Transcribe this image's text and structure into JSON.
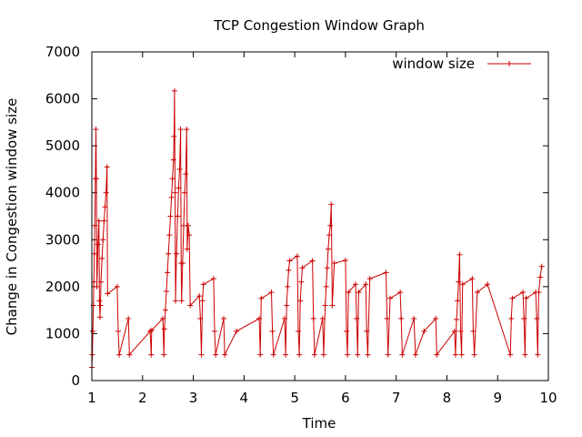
{
  "chart_data": {
    "type": "line",
    "title": "TCP Congestion Window Graph",
    "xlabel": "Time",
    "ylabel": "Change in Congestion window size",
    "xlim": [
      1,
      10
    ],
    "ylim": [
      0,
      7000
    ],
    "xticks": [
      1,
      2,
      3,
      4,
      5,
      6,
      7,
      8,
      9,
      10
    ],
    "yticks": [
      0,
      1000,
      2000,
      3000,
      4000,
      5000,
      6000,
      7000
    ],
    "grid": false,
    "legend_position": "top-right",
    "series": [
      {
        "name": "window size",
        "color": "#cc0000",
        "marker": "plus",
        "points": [
          [
            1.0,
            280
          ],
          [
            1.01,
            550
          ],
          [
            1.02,
            1050
          ],
          [
            1.03,
            1600
          ],
          [
            1.04,
            2100
          ],
          [
            1.05,
            2700
          ],
          [
            1.06,
            3300
          ],
          [
            1.07,
            4300
          ],
          [
            1.08,
            5350
          ],
          [
            1.09,
            4300
          ],
          [
            1.1,
            2000
          ],
          [
            1.12,
            2900
          ],
          [
            1.14,
            3400
          ],
          [
            1.15,
            1700
          ],
          [
            1.16,
            1350
          ],
          [
            1.17,
            1600
          ],
          [
            1.18,
            2100
          ],
          [
            1.2,
            2600
          ],
          [
            1.22,
            3000
          ],
          [
            1.24,
            3400
          ],
          [
            1.26,
            3700
          ],
          [
            1.28,
            4000
          ],
          [
            1.3,
            4550
          ],
          [
            1.31,
            1850
          ],
          [
            1.5,
            2000
          ],
          [
            1.52,
            1050
          ],
          [
            1.54,
            550
          ],
          [
            1.72,
            1320
          ],
          [
            1.74,
            550
          ],
          [
            2.15,
            1050
          ],
          [
            2.17,
            550
          ],
          [
            2.18,
            1070
          ],
          [
            2.4,
            1320
          ],
          [
            2.42,
            550
          ],
          [
            2.43,
            1100
          ],
          [
            2.45,
            1500
          ],
          [
            2.47,
            1900
          ],
          [
            2.49,
            2300
          ],
          [
            2.51,
            2700
          ],
          [
            2.53,
            3100
          ],
          [
            2.55,
            3500
          ],
          [
            2.57,
            3900
          ],
          [
            2.59,
            4300
          ],
          [
            2.61,
            4700
          ],
          [
            2.62,
            5200
          ],
          [
            2.63,
            6170
          ],
          [
            2.64,
            4000
          ],
          [
            2.65,
            1700
          ],
          [
            2.67,
            2700
          ],
          [
            2.69,
            3500
          ],
          [
            2.71,
            4100
          ],
          [
            2.73,
            4500
          ],
          [
            2.75,
            5350
          ],
          [
            2.76,
            2500
          ],
          [
            2.77,
            1700
          ],
          [
            2.79,
            2500
          ],
          [
            2.81,
            3300
          ],
          [
            2.83,
            4000
          ],
          [
            2.85,
            4400
          ],
          [
            2.87,
            5350
          ],
          [
            2.88,
            2800
          ],
          [
            2.9,
            3300
          ],
          [
            2.92,
            3100
          ],
          [
            2.94,
            1600
          ],
          [
            3.12,
            1800
          ],
          [
            3.14,
            1320
          ],
          [
            3.16,
            550
          ],
          [
            3.18,
            1700
          ],
          [
            3.2,
            2050
          ],
          [
            3.4,
            2170
          ],
          [
            3.42,
            1050
          ],
          [
            3.44,
            550
          ],
          [
            3.6,
            1320
          ],
          [
            3.62,
            550
          ],
          [
            3.85,
            1050
          ],
          [
            4.3,
            1320
          ],
          [
            4.32,
            550
          ],
          [
            4.34,
            1750
          ],
          [
            4.54,
            1880
          ],
          [
            4.56,
            1050
          ],
          [
            4.58,
            550
          ],
          [
            4.8,
            1320
          ],
          [
            4.82,
            550
          ],
          [
            4.84,
            1600
          ],
          [
            4.86,
            2000
          ],
          [
            4.88,
            2350
          ],
          [
            4.9,
            2550
          ],
          [
            5.05,
            2650
          ],
          [
            5.07,
            1050
          ],
          [
            5.09,
            550
          ],
          [
            5.11,
            1700
          ],
          [
            5.13,
            2100
          ],
          [
            5.15,
            2400
          ],
          [
            5.35,
            2550
          ],
          [
            5.37,
            1320
          ],
          [
            5.39,
            550
          ],
          [
            5.55,
            1320
          ],
          [
            5.57,
            550
          ],
          [
            5.6,
            1600
          ],
          [
            5.62,
            2000
          ],
          [
            5.64,
            2400
          ],
          [
            5.66,
            2800
          ],
          [
            5.68,
            3100
          ],
          [
            5.7,
            3300
          ],
          [
            5.72,
            3750
          ],
          [
            5.74,
            1600
          ],
          [
            5.78,
            2500
          ],
          [
            6.0,
            2560
          ],
          [
            6.02,
            1050
          ],
          [
            6.04,
            550
          ],
          [
            6.06,
            1880
          ],
          [
            6.2,
            2050
          ],
          [
            6.22,
            1320
          ],
          [
            6.24,
            550
          ],
          [
            6.26,
            1880
          ],
          [
            6.4,
            2050
          ],
          [
            6.42,
            1050
          ],
          [
            6.44,
            550
          ],
          [
            6.48,
            2170
          ],
          [
            6.8,
            2300
          ],
          [
            6.82,
            1320
          ],
          [
            6.84,
            550
          ],
          [
            6.88,
            1750
          ],
          [
            7.08,
            1880
          ],
          [
            7.1,
            1320
          ],
          [
            7.12,
            550
          ],
          [
            7.35,
            1320
          ],
          [
            7.38,
            550
          ],
          [
            7.55,
            1050
          ],
          [
            7.78,
            1320
          ],
          [
            7.8,
            550
          ],
          [
            8.15,
            1050
          ],
          [
            8.17,
            550
          ],
          [
            8.19,
            1300
          ],
          [
            8.21,
            1700
          ],
          [
            8.23,
            2100
          ],
          [
            8.25,
            2680
          ],
          [
            8.27,
            1050
          ],
          [
            8.29,
            550
          ],
          [
            8.31,
            2050
          ],
          [
            8.5,
            2170
          ],
          [
            8.52,
            1050
          ],
          [
            8.54,
            550
          ],
          [
            8.6,
            1880
          ],
          [
            8.8,
            2050
          ],
          [
            9.25,
            550
          ],
          [
            9.27,
            1320
          ],
          [
            9.29,
            1750
          ],
          [
            9.5,
            1880
          ],
          [
            9.52,
            1320
          ],
          [
            9.54,
            550
          ],
          [
            9.56,
            1750
          ],
          [
            9.75,
            1880
          ],
          [
            9.77,
            1320
          ],
          [
            9.79,
            550
          ],
          [
            9.81,
            1880
          ],
          [
            9.84,
            2200
          ],
          [
            9.87,
            2430
          ]
        ]
      }
    ]
  }
}
